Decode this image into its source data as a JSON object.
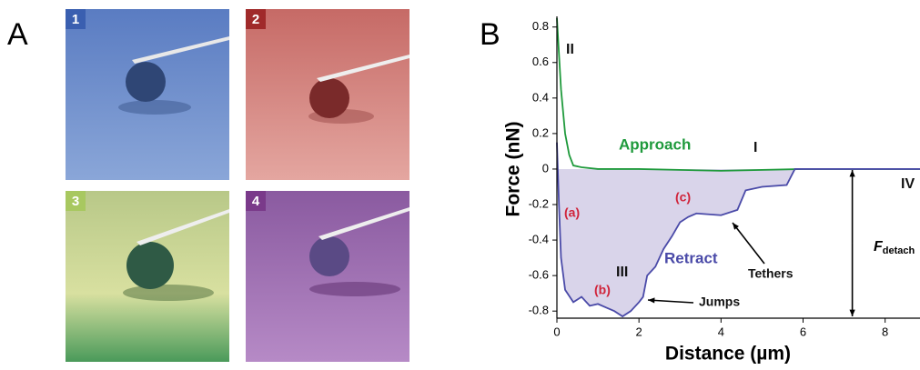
{
  "panels": {
    "a": {
      "label": "A",
      "tiles": [
        {
          "label": "1"
        },
        {
          "label": "2"
        },
        {
          "label": "3"
        },
        {
          "label": "4"
        }
      ]
    },
    "b": {
      "label": "B"
    }
  },
  "chart_data": {
    "type": "line",
    "x_label": "Distance (µm)",
    "y_label": "Force (nN)",
    "xlim": [
      0,
      8.85
    ],
    "ylim": [
      -0.84,
      0.86
    ],
    "xticks": [
      0,
      2,
      4,
      6,
      8
    ],
    "yticks": [
      0.8,
      0.6,
      0.4,
      0.2,
      0,
      -0.2,
      -0.4,
      -0.6,
      -0.8
    ],
    "fill_under": "#d9d4ea",
    "series": [
      {
        "name": "Approach",
        "color": "#1f9a3c",
        "x": [
          0,
          0.05,
          0.1,
          0.2,
          0.3,
          0.4,
          0.6,
          1,
          2,
          4,
          6,
          8,
          8.85
        ],
        "values": [
          0.85,
          0.65,
          0.45,
          0.2,
          0.08,
          0.02,
          0.01,
          0,
          0,
          -0.01,
          0,
          0,
          0
        ]
      },
      {
        "name": "Retract",
        "color": "#4a4aa8",
        "x": [
          0,
          0.05,
          0.1,
          0.2,
          0.4,
          0.6,
          0.8,
          1.0,
          1.2,
          1.4,
          1.6,
          1.8,
          2.0,
          2.1,
          2.2,
          2.4,
          2.6,
          2.8,
          3.0,
          3.2,
          3.4,
          4.0,
          4.4,
          4.6,
          5.0,
          5.6,
          5.8,
          7,
          8.85
        ],
        "values": [
          0.15,
          -0.2,
          -0.5,
          -0.68,
          -0.75,
          -0.72,
          -0.77,
          -0.76,
          -0.78,
          -0.8,
          -0.83,
          -0.8,
          -0.75,
          -0.72,
          -0.6,
          -0.55,
          -0.45,
          -0.38,
          -0.3,
          -0.27,
          -0.25,
          -0.26,
          -0.23,
          -0.12,
          -0.1,
          -0.09,
          0,
          0,
          0
        ]
      }
    ],
    "annotations": [
      {
        "text": "II",
        "color": "#111111"
      },
      {
        "text": "I",
        "color": "#111111"
      },
      {
        "text": "III",
        "color": "#111111"
      },
      {
        "text": "IV",
        "color": "#111111"
      },
      {
        "text": "(a)",
        "color": "#d0233a"
      },
      {
        "text": "(b)",
        "color": "#d0233a"
      },
      {
        "text": "(c)",
        "color": "#d0233a"
      },
      {
        "text": "Tethers",
        "color": "#111111"
      },
      {
        "text": "Jumps",
        "color": "#111111"
      }
    ],
    "detach_label": {
      "main": "F",
      "sub": "detach"
    }
  }
}
